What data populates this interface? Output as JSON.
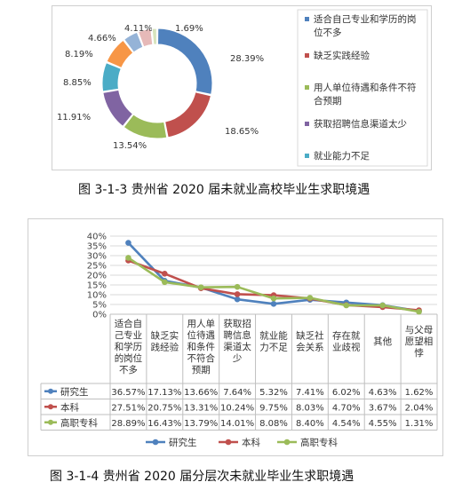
{
  "figure1": {
    "caption": "图 3-1-3 贵州省 2020 届未就业高校毕业生求职境遇"
  },
  "figure2": {
    "caption": "图 3-1-4 贵州省 2020 届分层次未就业毕业生求职境遇"
  },
  "chart_data": [
    {
      "type": "pie",
      "subtype": "donut",
      "slices": [
        {
          "label": "适合自己专业和学历的岗位不多",
          "value": 28.39,
          "value_label": "28.39%",
          "color": "#4f81bd"
        },
        {
          "label": "缺乏实践经验",
          "value": 18.65,
          "value_label": "18.65%",
          "color": "#c0504d"
        },
        {
          "label": "用人单位待遇和条件不符合预期",
          "value": 13.54,
          "value_label": "13.54%",
          "color": "#9bbb59"
        },
        {
          "label": "获取招聘信息渠道太少",
          "value": 11.91,
          "value_label": "11.91%",
          "color": "#8064a2"
        },
        {
          "label": "就业能力不足",
          "value": 8.85,
          "value_label": "8.85%",
          "color": "#4bacc6"
        },
        {
          "label": "",
          "value": 8.19,
          "value_label": "8.19%",
          "color": "#f79646"
        },
        {
          "label": "",
          "value": 4.66,
          "value_label": "4.66%",
          "color": "#95b3d7"
        },
        {
          "label": "",
          "value": 4.11,
          "value_label": "4.11%",
          "color": "#e6b9b8"
        },
        {
          "label": "",
          "value": 1.69,
          "value_label": "1.69%",
          "color": "#d7e4bd"
        }
      ],
      "legend": [
        {
          "label": "适合自己专业和学历的岗位不多",
          "color": "#4f81bd"
        },
        {
          "label": "缺乏实践经验",
          "color": "#c0504d"
        },
        {
          "label": "用人单位待遇和条件不符合预期",
          "color": "#9bbb59"
        },
        {
          "label": "获取招聘信息渠道太少",
          "color": "#8064a2"
        },
        {
          "label": "就业能力不足",
          "color": "#4bacc6"
        }
      ],
      "legend_position": "right"
    },
    {
      "type": "line",
      "ylim": [
        0,
        40
      ],
      "yticks": [
        "0%",
        "5%",
        "10%",
        "15%",
        "20%",
        "25%",
        "30%",
        "35%",
        "40%"
      ],
      "grid": true,
      "categories": [
        "适合自己专业和学历的岗位不多",
        "缺乏实践经验",
        "用人单位待遇和条件不符合预期",
        "获取招聘信息渠道太少",
        "就业能力不足",
        "缺乏社会关系",
        "存在就业歧视",
        "其他",
        "与父母愿望相悖"
      ],
      "series": [
        {
          "name": "研究生",
          "color": "#4f81bd",
          "values": [
            36.57,
            17.13,
            13.66,
            7.64,
            5.32,
            7.41,
            6.02,
            4.63,
            1.62
          ],
          "labels": [
            "36.57%",
            "17.13%",
            "13.66%",
            "7.64%",
            "5.32%",
            "7.41%",
            "6.02%",
            "4.63%",
            "1.62%"
          ]
        },
        {
          "name": "本科",
          "color": "#c0504d",
          "values": [
            27.51,
            20.75,
            13.31,
            10.24,
            9.75,
            8.03,
            4.7,
            3.67,
            2.04
          ],
          "labels": [
            "27.51%",
            "20.75%",
            "13.31%",
            "10.24%",
            "9.75%",
            "8.03%",
            "4.70%",
            "3.67%",
            "2.04%"
          ]
        },
        {
          "name": "高职专科",
          "color": "#9bbb59",
          "values": [
            28.89,
            16.43,
            13.79,
            14.01,
            8.08,
            8.4,
            4.54,
            4.55,
            1.31
          ],
          "labels": [
            "28.89%",
            "16.43%",
            "13.79%",
            "14.01%",
            "8.08%",
            "8.40%",
            "4.54%",
            "4.55%",
            "1.31%"
          ]
        }
      ],
      "legend_position": "bottom"
    }
  ]
}
